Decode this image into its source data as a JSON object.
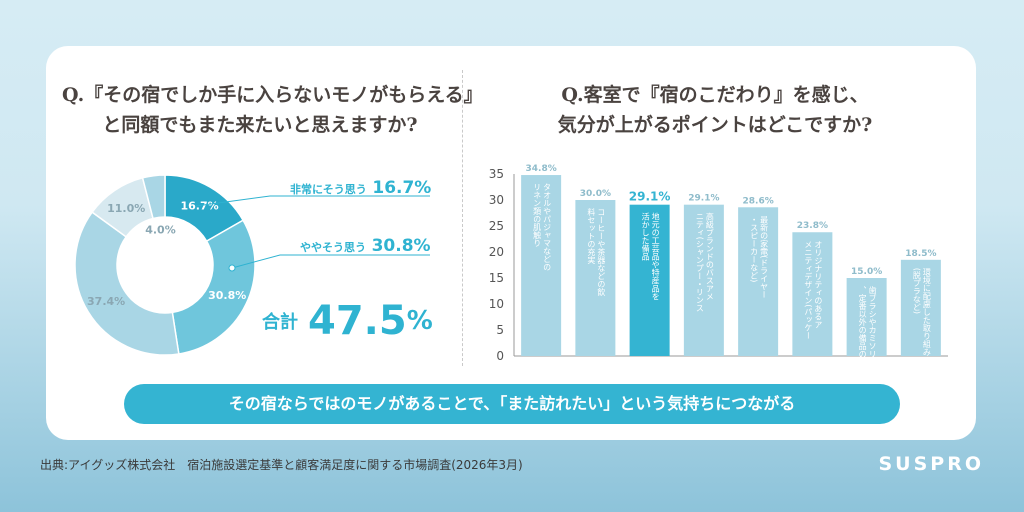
{
  "left": {
    "question_line1": "Q.『その宿でしか手に入らないモノがもらえる』",
    "question_line2": "と同額でもまた来たいと思えますか?",
    "callout1": {
      "label": "非常にそう思う",
      "value": "16.7%"
    },
    "callout2": {
      "label": "ややそう思う",
      "value": "30.8%"
    },
    "total": {
      "label": "合計",
      "value": "47.5",
      "unit": "%"
    }
  },
  "right": {
    "question_line1": "Q.客室で『宿のこだわり』を感じ、",
    "question_line2": "気分が上がるポイントはどこですか?"
  },
  "banner": "その宿ならではのモノがあることで、「また訪れたい」という気持ちにつながる",
  "source": "出典:アイグッズ株式会社　宿泊施設選定基準と顧客満足度に関する市場調査(2026年3月)",
  "brand": "SUSPRO",
  "colors": {
    "accent": "#34b4d2",
    "accent_dark": "#2aa9c9",
    "mid": "#7ccbe0",
    "light": "#a9d6e5",
    "pale": "#d7e9f0",
    "bar": "#a9d6e5"
  },
  "chart_data": [
    {
      "type": "pie",
      "donut": true,
      "slices": [
        {
          "label": "16.7%",
          "value": 16.7,
          "color": "#2aa9c9"
        },
        {
          "label": "30.8%",
          "value": 30.8,
          "color": "#6fc6dc"
        },
        {
          "label": "37.4%",
          "value": 37.4,
          "color": "#a9d6e5"
        },
        {
          "label": "11.0%",
          "value": 11.0,
          "color": "#d7e9f0"
        },
        {
          "label": "4.0%",
          "value": 4.0,
          "color": "#a9d6e5"
        }
      ]
    },
    {
      "type": "bar",
      "ylim": [
        0,
        35
      ],
      "yticks": [
        0,
        5,
        10,
        15,
        20,
        25,
        30,
        35
      ],
      "highlight_index": 2,
      "categories": [
        "タオルやパジャマなどのリネン類の肌触り",
        "コーヒーや茶器などの飲料セットの充実",
        "地元の工芸品や特産品を活かした備品",
        "高級ブランドのバスアメニティ(シャンプー・リンスなど)",
        "最新の家電(ドライヤー・スピーカーなど)",
        "オリジナリティのあるアメニティデザイン(パッケージや素材)",
        "歯ブラシやカミソリなど、定番以外の備品の充実",
        "環境に配慮した取り組み(脱プラなど)"
      ],
      "values": [
        34.8,
        30.0,
        29.1,
        29.1,
        28.6,
        23.8,
        15.0,
        18.5
      ],
      "value_labels": [
        "34.8%",
        "30.0%",
        "29.1%",
        "29.1%",
        "28.6%",
        "23.8%",
        "15.0%",
        "18.5%"
      ]
    }
  ]
}
